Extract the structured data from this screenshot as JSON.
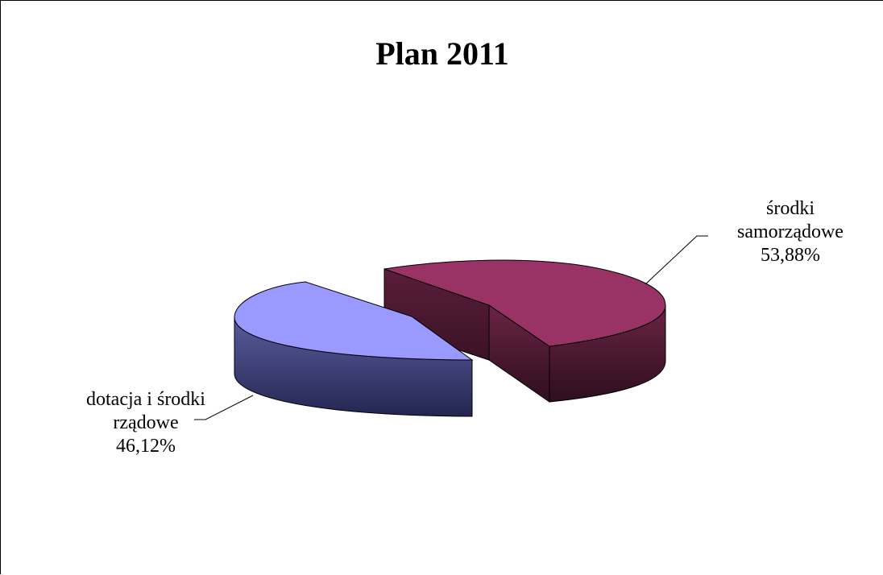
{
  "chart_data": {
    "type": "pie",
    "title": "Plan 2011",
    "style": "3d-exploded",
    "slices": [
      {
        "name_lines": [
          "środki",
          "samorządowe"
        ],
        "value": 53.88,
        "label": "53,88%",
        "color": "#993366"
      },
      {
        "name_lines": [
          "dotacja i środki",
          "rządowe"
        ],
        "value": 46.12,
        "label": "46,12%",
        "color": "#9999FF"
      }
    ],
    "legend": "none"
  }
}
